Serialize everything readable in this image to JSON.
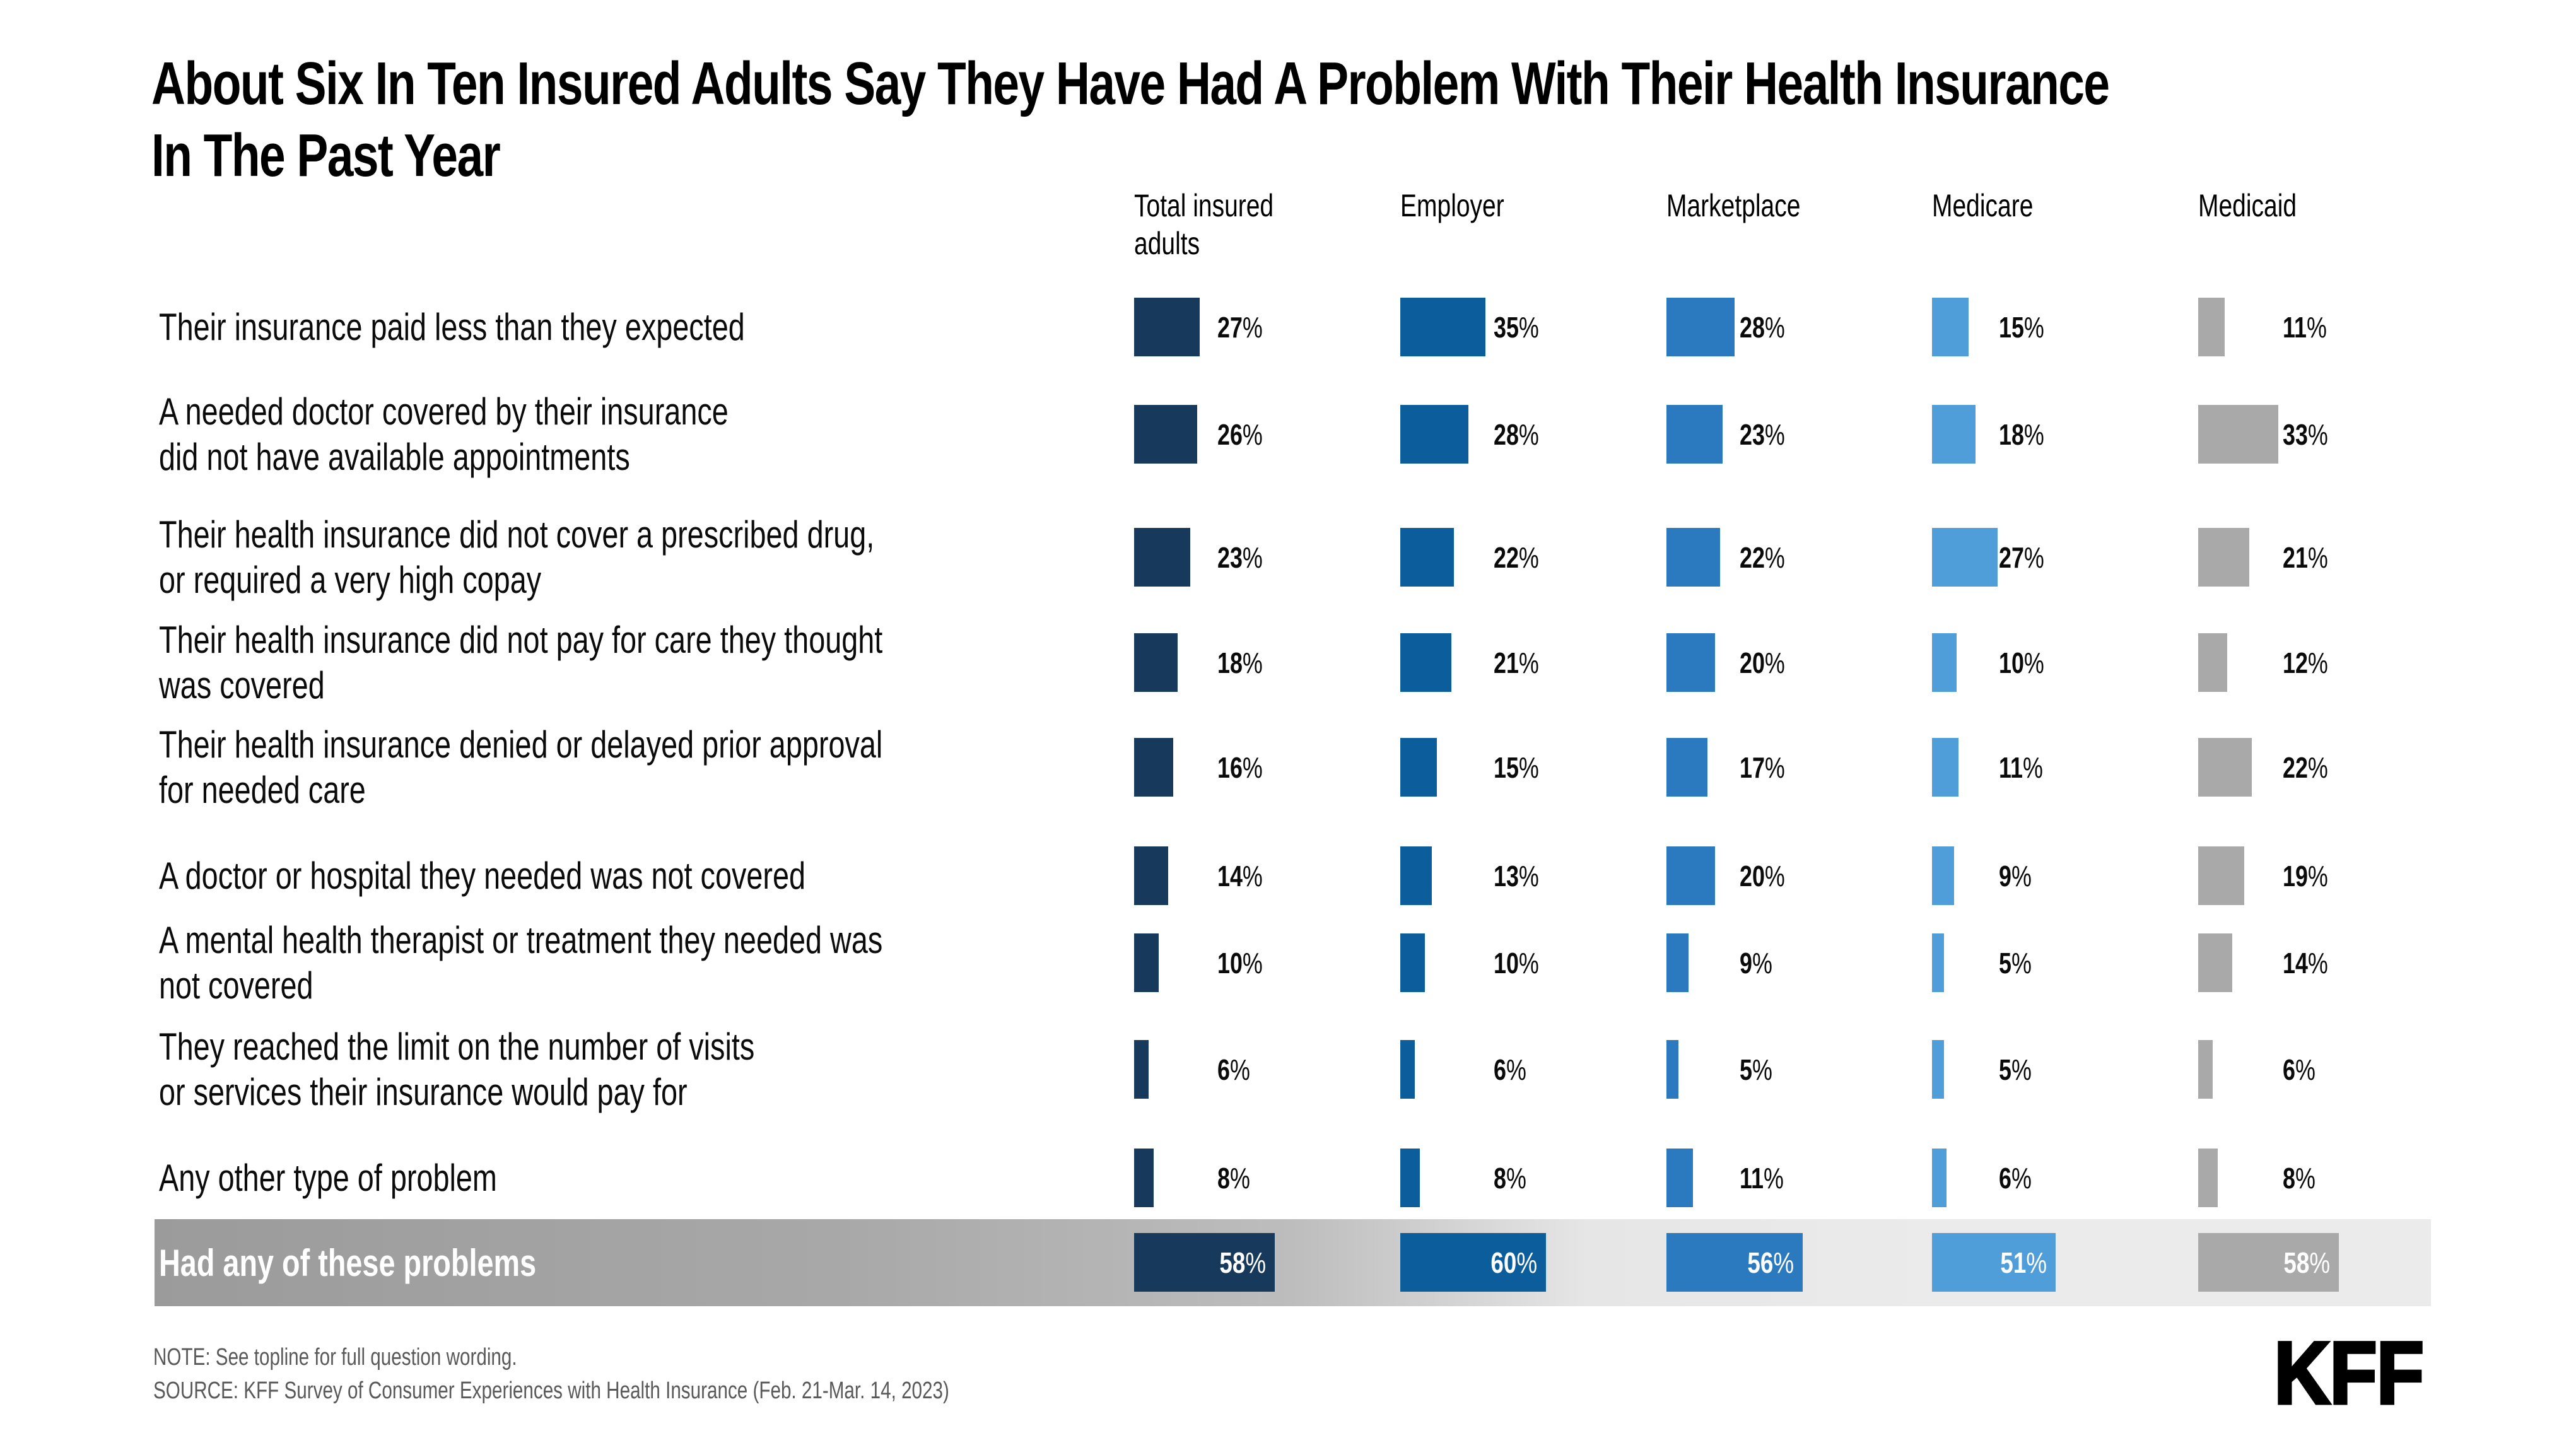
{
  "title_lines": [
    "About Six In Ten Insured Adults Say They Have Had A Problem With Their Health Insurance",
    "In The Past Year"
  ],
  "percent_sign": "%",
  "rows": [
    {
      "label_lines": [
        "Their insurance paid less than they expected"
      ]
    },
    {
      "label_lines": [
        "A needed doctor covered by their insurance",
        "did not have available appointments"
      ]
    },
    {
      "label_lines": [
        "Their health insurance did not cover a prescribed drug,",
        "or required a very high copay"
      ]
    },
    {
      "label_lines": [
        "Their health insurance did not pay for care they thought",
        "was covered"
      ]
    },
    {
      "label_lines": [
        "Their health insurance denied or delayed prior approval",
        "for needed care"
      ]
    },
    {
      "label_lines": [
        "A doctor or hospital they needed was not covered"
      ]
    },
    {
      "label_lines": [
        "A mental health therapist or treatment they needed was",
        "not covered"
      ]
    },
    {
      "label_lines": [
        "They reached the limit on the number of visits",
        "or services their insurance would pay for"
      ]
    },
    {
      "label_lines": [
        "Any other type of problem"
      ]
    }
  ],
  "note": "NOTE: See topline for full question wording.",
  "source": "SOURCE: KFF Survey of Consumer Experiences with Health Insurance (Feb. 21-Mar. 14, 2023)",
  "logo_text": "KFF",
  "colors": {
    "band_gradient_start": "#9b9b9b",
    "band_gradient_end": "#ebebeb",
    "note_text": "#595959",
    "text": "#000000"
  },
  "chart_data": {
    "type": "bar",
    "orientation": "horizontal",
    "unit": "%",
    "title": "About Six In Ten Insured Adults Say They Have Had A Problem With Their Health Insurance In The Past Year",
    "categories": [
      "Their insurance paid less than they expected",
      "A needed doctor covered by their insurance did not have available appointments",
      "Their health insurance did not cover a prescribed drug, or required a very high copay",
      "Their health insurance did not pay for care they thought was covered",
      "Their health insurance denied or delayed prior approval for needed care",
      "A doctor or hospital they needed was not covered",
      "A mental health therapist or treatment they needed was not covered",
      "They reached the limit on the number of visits or services their insurance would pay for",
      "Any other type of problem"
    ],
    "series": [
      {
        "name": "Total insured adults",
        "color": "#16395C",
        "values": [
          27,
          26,
          23,
          18,
          16,
          14,
          10,
          6,
          8
        ]
      },
      {
        "name": "Employer",
        "color": "#0C5D9B",
        "values": [
          35,
          28,
          22,
          21,
          15,
          13,
          10,
          6,
          8
        ]
      },
      {
        "name": "Marketplace",
        "color": "#2B79BE",
        "values": [
          28,
          23,
          22,
          20,
          17,
          20,
          9,
          5,
          11
        ]
      },
      {
        "name": "Medicare",
        "color": "#4F9DD9",
        "values": [
          15,
          18,
          27,
          10,
          11,
          9,
          5,
          5,
          6
        ]
      },
      {
        "name": "Medicaid",
        "color": "#A9A9A9",
        "values": [
          11,
          33,
          21,
          12,
          22,
          19,
          14,
          6,
          8
        ]
      }
    ],
    "summary_row": {
      "category": "Had any of these problems",
      "values": [
        58,
        60,
        56,
        51,
        58
      ]
    },
    "value_range": [
      0,
      60
    ],
    "grid": false,
    "legend_position": "column-headers"
  }
}
